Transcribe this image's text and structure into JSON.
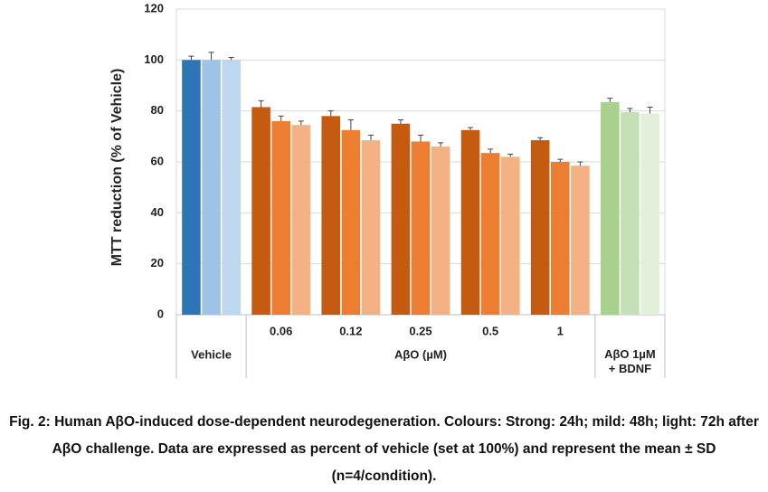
{
  "chart_data": {
    "type": "bar",
    "ylabel": "MTT reduction (% of Vehicle)",
    "categories": [
      "Vehicle",
      "0.06",
      "0.12",
      "0.25",
      "0.5",
      "1",
      "AβO 1µM + BDNF"
    ],
    "group_label": "AβO (µM)",
    "series": [
      {
        "values": [
          100,
          81.5,
          78,
          75,
          72.5,
          68.5,
          83.5
        ],
        "errors": [
          1.5,
          2.5,
          2,
          1.5,
          1,
          1,
          1.5
        ],
        "colors": [
          "#2e75b6",
          "#c55a11",
          "#c55a11",
          "#c55a11",
          "#c55a11",
          "#c55a11",
          "#a9d18e"
        ]
      },
      {
        "values": [
          100,
          76,
          72.5,
          68,
          63.5,
          60,
          79.5
        ],
        "errors": [
          3,
          2,
          4,
          2.5,
          1.5,
          1,
          1.5
        ],
        "colors": [
          "#9dc3e6",
          "#ed7d31",
          "#ed7d31",
          "#ed7d31",
          "#ed7d31",
          "#ed7d31",
          "#c5e0b4"
        ]
      },
      {
        "values": [
          100,
          74.5,
          68.5,
          66,
          62,
          58.5,
          79
        ],
        "errors": [
          1,
          1.5,
          2,
          1.5,
          1,
          1.5,
          2.5
        ],
        "colors": [
          "#bdd7ee",
          "#f4b183",
          "#f4b183",
          "#f4b183",
          "#f4b183",
          "#f4b183",
          "#e2f0d9"
        ]
      }
    ],
    "ylim": [
      0,
      120
    ],
    "yticks": [
      0,
      20,
      40,
      60,
      80,
      100,
      120
    ],
    "grid": true,
    "caption": "Fig. 2: Human AβO-induced dose-dependent neurodegeneration. Colours: Strong: 24h; mild: 48h; light: 72h after AβO challenge. Data are expressed as percent of vehicle (set at 100%) and represent the mean ± SD (n=4/condition)."
  }
}
